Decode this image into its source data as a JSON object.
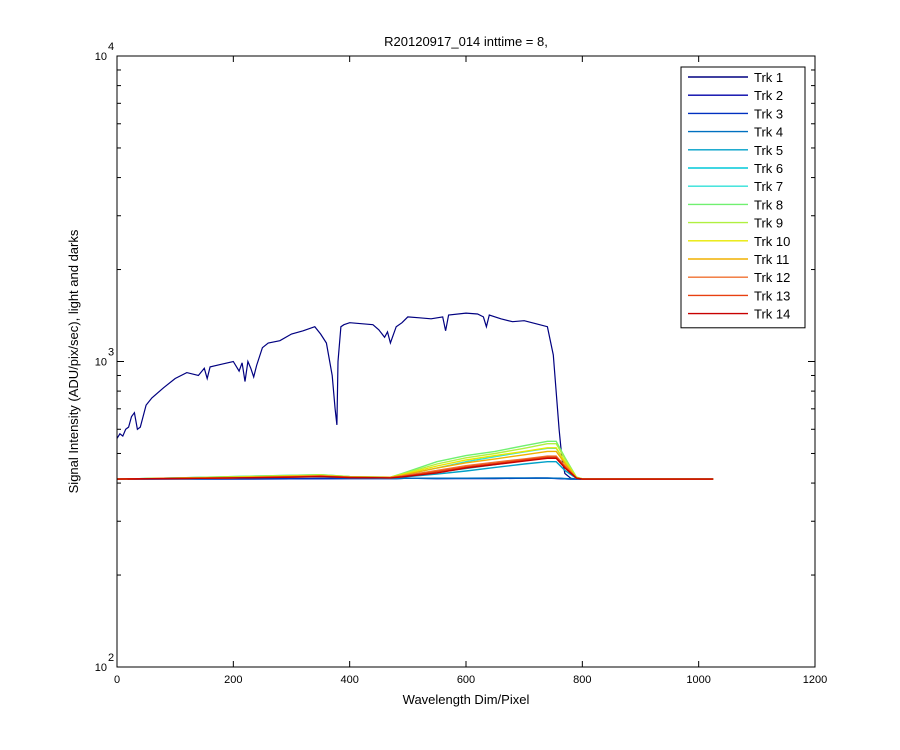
{
  "chart_data": {
    "type": "line",
    "title": "R20120917_014 inttime = 8,",
    "xlabel": "Wavelength Dim/Pixel",
    "ylabel": "Signal Intensity (ADU/pix/sec), light and darks",
    "xlim": [
      0,
      1200
    ],
    "ylim": [
      100,
      10000
    ],
    "yscale": "log",
    "grid": false,
    "legend_position": "top-right",
    "x_ticks": [
      {
        "value": 0,
        "label": "0"
      },
      {
        "value": 200,
        "label": "200"
      },
      {
        "value": 400,
        "label": "400"
      },
      {
        "value": 600,
        "label": "600"
      },
      {
        "value": 800,
        "label": "800"
      },
      {
        "value": 1000,
        "label": "1000"
      },
      {
        "value": 1200,
        "label": "1200"
      }
    ],
    "y_ticks": [
      {
        "value": 100,
        "base": "10",
        "exp": "2"
      },
      {
        "value": 1000,
        "base": "10",
        "exp": "3"
      },
      {
        "value": 10000,
        "base": "10",
        "exp": "4"
      }
    ],
    "series": [
      {
        "name": "Trk 1",
        "color": "#000080",
        "x": [
          0,
          5,
          10,
          15,
          20,
          25,
          30,
          35,
          40,
          50,
          60,
          80,
          100,
          120,
          140,
          150,
          155,
          160,
          180,
          200,
          210,
          215,
          220,
          225,
          230,
          235,
          240,
          250,
          260,
          280,
          300,
          320,
          340,
          350,
          360,
          370,
          375,
          378,
          380,
          385,
          390,
          400,
          420,
          440,
          450,
          460,
          465,
          470,
          480,
          490,
          500,
          520,
          540,
          560,
          565,
          570,
          600,
          620,
          630,
          635,
          640,
          660,
          680,
          700,
          720,
          740,
          750,
          760,
          765,
          770,
          780,
          790,
          800
        ],
        "y": [
          560,
          580,
          570,
          600,
          610,
          660,
          680,
          600,
          610,
          720,
          760,
          820,
          880,
          920,
          900,
          950,
          880,
          960,
          980,
          1000,
          930,
          990,
          860,
          1000,
          950,
          890,
          970,
          1110,
          1150,
          1170,
          1230,
          1260,
          1300,
          1230,
          1150,
          900,
          700,
          620,
          1000,
          1300,
          1320,
          1340,
          1330,
          1320,
          1270,
          1200,
          1250,
          1150,
          1300,
          1340,
          1400,
          1390,
          1380,
          1400,
          1260,
          1420,
          1440,
          1430,
          1400,
          1300,
          1420,
          1380,
          1350,
          1360,
          1330,
          1300,
          1050,
          600,
          480,
          430,
          415,
          412,
          412
        ]
      },
      {
        "name": "Trk 2",
        "color": "#0000a8",
        "x": [
          0,
          300,
          400,
          480,
          500,
          550,
          600,
          650,
          700,
          720,
          740,
          760,
          780,
          800,
          1025
        ],
        "y": [
          412,
          413,
          414,
          414,
          415,
          414,
          414,
          414,
          415,
          415,
          415,
          414,
          412,
          412,
          412
        ]
      },
      {
        "name": "Trk 3",
        "color": "#0030c0",
        "x": [
          0,
          300,
          400,
          480,
          500,
          550,
          600,
          650,
          700,
          720,
          740,
          760,
          780,
          800,
          1025
        ],
        "y": [
          412,
          413,
          414,
          414,
          415,
          414,
          415,
          415,
          415,
          416,
          416,
          414,
          412,
          412,
          412
        ]
      },
      {
        "name": "Trk 4",
        "color": "#0070c0",
        "x": [
          0,
          100,
          200,
          300,
          350,
          400,
          480,
          500,
          600,
          700,
          760,
          780,
          800,
          1025
        ],
        "y": [
          412,
          413,
          415,
          418,
          419,
          416,
          414,
          415,
          415,
          416,
          415,
          413,
          412,
          412
        ]
      },
      {
        "name": "Trk 5",
        "color": "#00a0c8",
        "x": [
          0,
          100,
          200,
          300,
          350,
          400,
          470,
          490,
          550,
          600,
          650,
          700,
          740,
          755,
          770,
          790,
          800,
          1025
        ],
        "y": [
          412,
          415,
          418,
          422,
          424,
          418,
          415,
          418,
          428,
          438,
          450,
          462,
          470,
          470,
          440,
          414,
          412,
          412
        ]
      },
      {
        "name": "Trk 6",
        "color": "#00c8d8",
        "x": [
          0,
          100,
          200,
          300,
          350,
          400,
          470,
          490,
          550,
          600,
          650,
          700,
          740,
          755,
          770,
          790,
          800,
          1025
        ],
        "y": [
          412,
          416,
          419,
          423,
          425,
          419,
          416,
          420,
          434,
          446,
          460,
          474,
          484,
          484,
          450,
          415,
          412,
          412
        ]
      },
      {
        "name": "Trk 7",
        "color": "#30e0d8",
        "x": [
          0,
          100,
          200,
          300,
          350,
          400,
          470,
          490,
          550,
          600,
          650,
          700,
          740,
          755,
          770,
          790,
          800,
          1025
        ],
        "y": [
          412,
          416,
          420,
          424,
          426,
          420,
          417,
          424,
          448,
          470,
          488,
          506,
          520,
          520,
          470,
          416,
          412,
          412
        ]
      },
      {
        "name": "Trk 8",
        "color": "#70f070",
        "x": [
          0,
          100,
          200,
          300,
          350,
          400,
          470,
          490,
          550,
          600,
          650,
          700,
          740,
          755,
          770,
          790,
          800,
          1025
        ],
        "y": [
          412,
          416,
          420,
          424,
          426,
          420,
          418,
          430,
          470,
          492,
          508,
          530,
          548,
          548,
          485,
          418,
          413,
          412
        ]
      },
      {
        "name": "Trk 9",
        "color": "#b0f040",
        "x": [
          0,
          100,
          200,
          300,
          350,
          400,
          470,
          490,
          550,
          600,
          650,
          700,
          740,
          755,
          770,
          790,
          800,
          1025
        ],
        "y": [
          412,
          416,
          419,
          423,
          425,
          420,
          418,
          428,
          462,
          484,
          500,
          520,
          538,
          538,
          480,
          418,
          413,
          412
        ]
      },
      {
        "name": "Trk 10",
        "color": "#e8e800",
        "x": [
          0,
          100,
          200,
          300,
          350,
          400,
          470,
          490,
          550,
          600,
          650,
          700,
          740,
          755,
          770,
          790,
          800,
          1025
        ],
        "y": [
          412,
          415,
          418,
          422,
          424,
          419,
          418,
          426,
          455,
          476,
          492,
          508,
          522,
          522,
          470,
          417,
          413,
          412
        ]
      },
      {
        "name": "Trk 11",
        "color": "#f0b000",
        "x": [
          0,
          100,
          200,
          300,
          350,
          400,
          470,
          490,
          550,
          600,
          650,
          700,
          740,
          755,
          770,
          790,
          800,
          1025
        ],
        "y": [
          412,
          415,
          417,
          421,
          423,
          418,
          417,
          424,
          448,
          466,
          480,
          495,
          508,
          508,
          464,
          416,
          412,
          412
        ]
      },
      {
        "name": "Trk 12",
        "color": "#f07030",
        "x": [
          0,
          100,
          200,
          300,
          350,
          400,
          470,
          490,
          550,
          600,
          650,
          700,
          740,
          755,
          770,
          790,
          800,
          1025
        ],
        "y": [
          412,
          414,
          416,
          420,
          422,
          418,
          417,
          422,
          440,
          456,
          468,
          480,
          490,
          490,
          456,
          415,
          412,
          412
        ]
      },
      {
        "name": "Trk 13",
        "color": "#e84010",
        "x": [
          0,
          100,
          200,
          300,
          350,
          400,
          470,
          490,
          550,
          600,
          650,
          700,
          740,
          755,
          770,
          790,
          800,
          1025
        ],
        "y": [
          412,
          414,
          416,
          419,
          421,
          417,
          416,
          420,
          436,
          452,
          464,
          476,
          486,
          486,
          452,
          415,
          412,
          412
        ]
      },
      {
        "name": "Trk 14",
        "color": "#c80000",
        "x": [
          0,
          100,
          200,
          300,
          350,
          400,
          470,
          490,
          550,
          600,
          650,
          700,
          740,
          755,
          770,
          790,
          800,
          1025
        ],
        "y": [
          412,
          414,
          416,
          418,
          420,
          417,
          416,
          419,
          432,
          448,
          460,
          472,
          482,
          482,
          448,
          415,
          412,
          412
        ]
      }
    ]
  }
}
